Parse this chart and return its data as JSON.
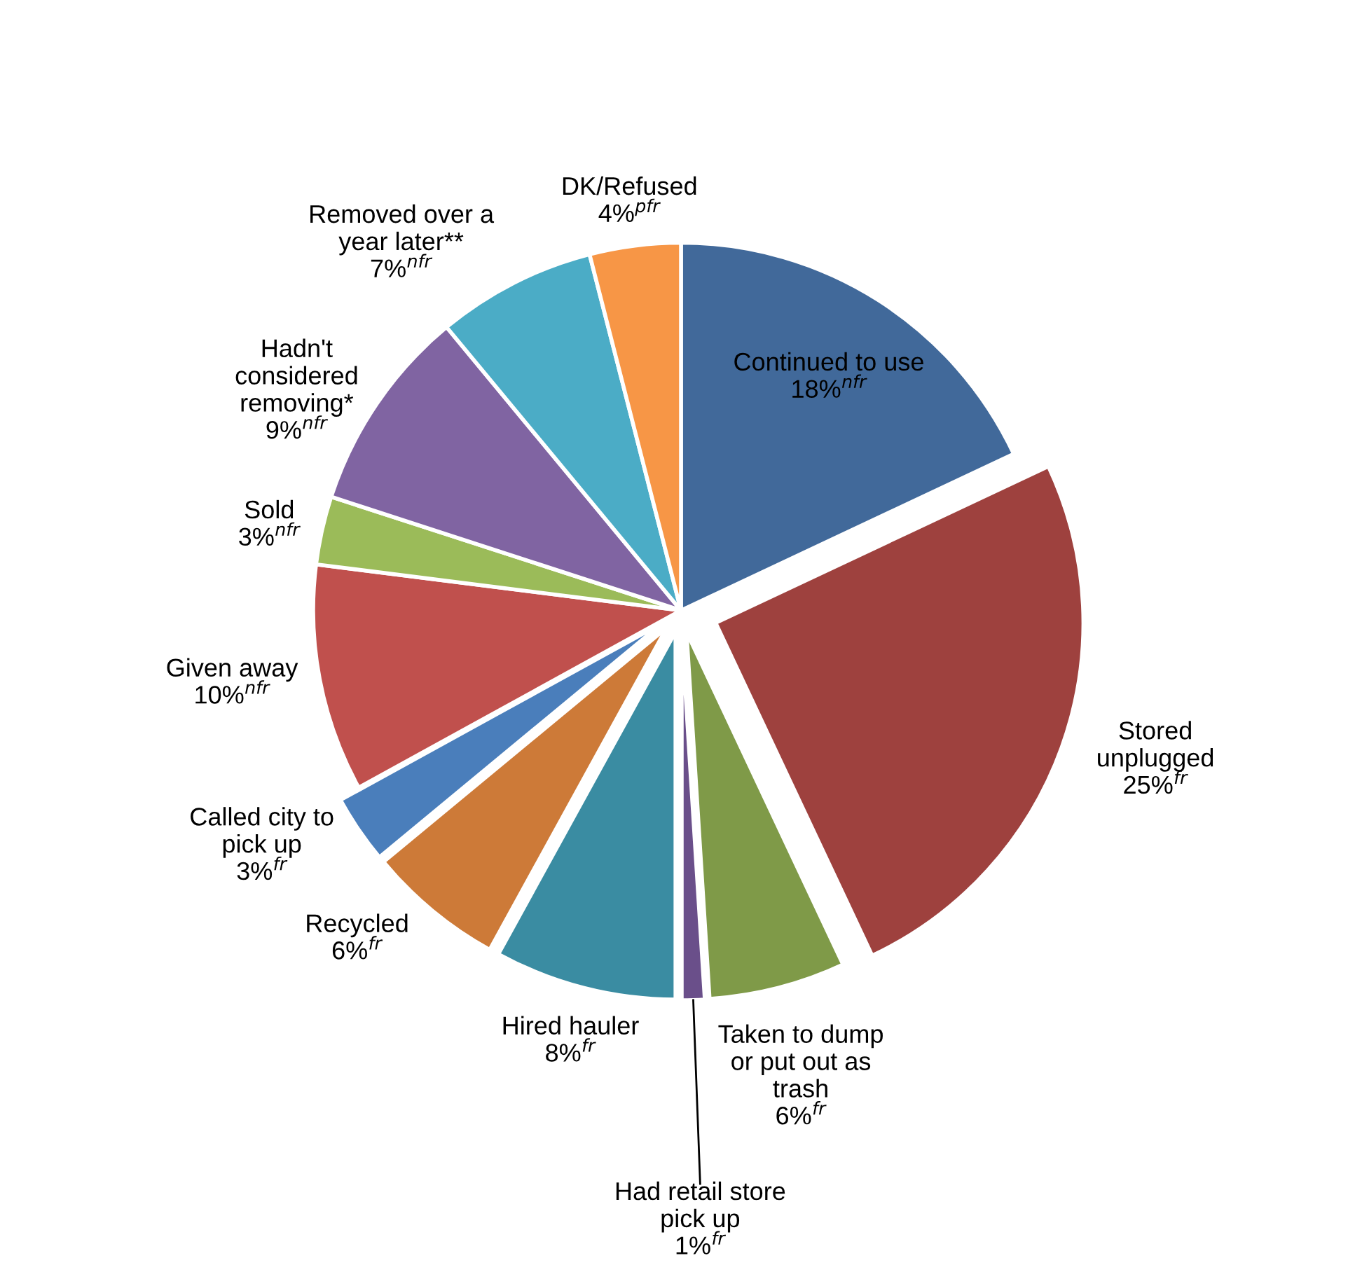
{
  "chart_data": {
    "type": "pie",
    "categories": [
      "Continued to use",
      "Stored\nunplugged",
      "Taken to dump\nor put out as\ntrash",
      "Had retail store\npick up",
      "Hired hauler",
      "Recycled",
      "Called city to\npick up",
      "Given away",
      "Sold",
      "Hadn't\nconsidered\nremoving*",
      "Removed over a\nyear later**",
      "DK/Refused"
    ],
    "values": [
      18,
      25,
      6,
      1,
      8,
      6,
      3,
      10,
      3,
      9,
      7,
      4
    ],
    "value_labels": [
      "18%$^{nfr}$",
      "25%$^{fr}$",
      "6%$^{fr}$",
      "1%$^{fr}$",
      "8%$^{fr}$",
      "6%$^{fr}$",
      "3%$^{fr}$",
      "10%$^{nfr}$",
      "3%$^{nfr}$",
      "9%$^{nfr}$",
      "7%$^{nfr}$",
      "4%$^{pfr}$"
    ],
    "colors": [
      "#41699a",
      "#9e413e",
      "#7f9a48",
      "#6a4f8a",
      "#3a8ca2",
      "#cd7a38",
      "#4a7ebb",
      "#c0504d",
      "#9bbb59",
      "#8064a2",
      "#4bacc6",
      "#f79646"
    ],
    "legend": false
  }
}
